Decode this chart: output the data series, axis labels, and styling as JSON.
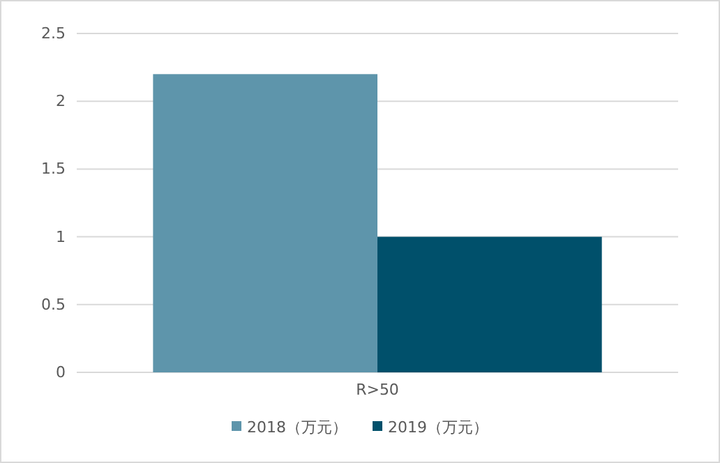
{
  "chart_data": {
    "type": "bar",
    "categories": [
      "R>50"
    ],
    "series": [
      {
        "name": "2018（万元）",
        "color": "#5e95ab",
        "values": [
          2.2
        ]
      },
      {
        "name": "2019（万元）",
        "color": "#00506b",
        "values": [
          1
        ]
      }
    ],
    "ylim": [
      0,
      2.5
    ],
    "yticks": [
      0,
      0.5,
      1,
      1.5,
      2,
      2.5
    ],
    "grid": "y",
    "legend": "bottom"
  }
}
